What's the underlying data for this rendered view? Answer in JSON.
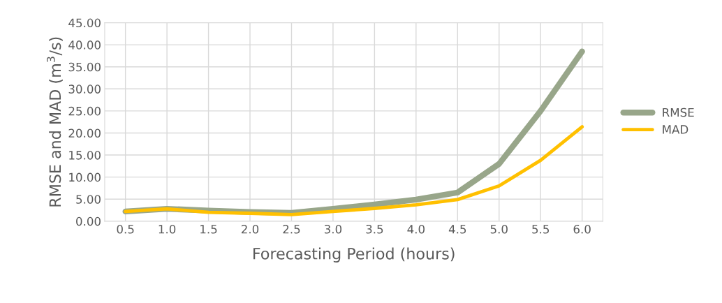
{
  "chart_data": {
    "type": "line",
    "xlabel": "Forecasting Period (hours)",
    "ylabel": "RMSE and MAD (m$^{3}$/s)",
    "categories": [
      "0.5",
      "1.0",
      "1.5",
      "2.0",
      "2.5",
      "3.0",
      "3.5",
      "4.0",
      "4.5",
      "5.0",
      "5.5",
      "6.0"
    ],
    "series": [
      {
        "name": "RMSE",
        "color": "#98a68a",
        "values": [
          2.2,
          2.8,
          2.4,
          2.1,
          1.9,
          2.8,
          3.8,
          4.9,
          6.5,
          13.0,
          25.0,
          38.5
        ]
      },
      {
        "name": "MAD",
        "color": "#ffc000",
        "values": [
          2.2,
          2.8,
          2.0,
          1.8,
          1.5,
          2.2,
          2.9,
          3.7,
          4.9,
          8.0,
          13.8,
          21.4
        ]
      }
    ],
    "ylim": [
      0,
      45
    ],
    "yticks": [
      {
        "value": 0,
        "label": "0.00"
      },
      {
        "value": 5,
        "label": "5.00"
      },
      {
        "value": 10,
        "label": "10.00"
      },
      {
        "value": 15,
        "label": "15.00"
      },
      {
        "value": 20,
        "label": "20.00"
      },
      {
        "value": 25,
        "label": "25.00"
      },
      {
        "value": 30,
        "label": "30.00"
      },
      {
        "value": 35,
        "label": "35.00"
      },
      {
        "value": 40,
        "label": "40.00"
      },
      {
        "value": 45,
        "label": "45.00"
      }
    ],
    "grid": true,
    "legend": "right",
    "marker": "none",
    "line_style": "solid"
  }
}
